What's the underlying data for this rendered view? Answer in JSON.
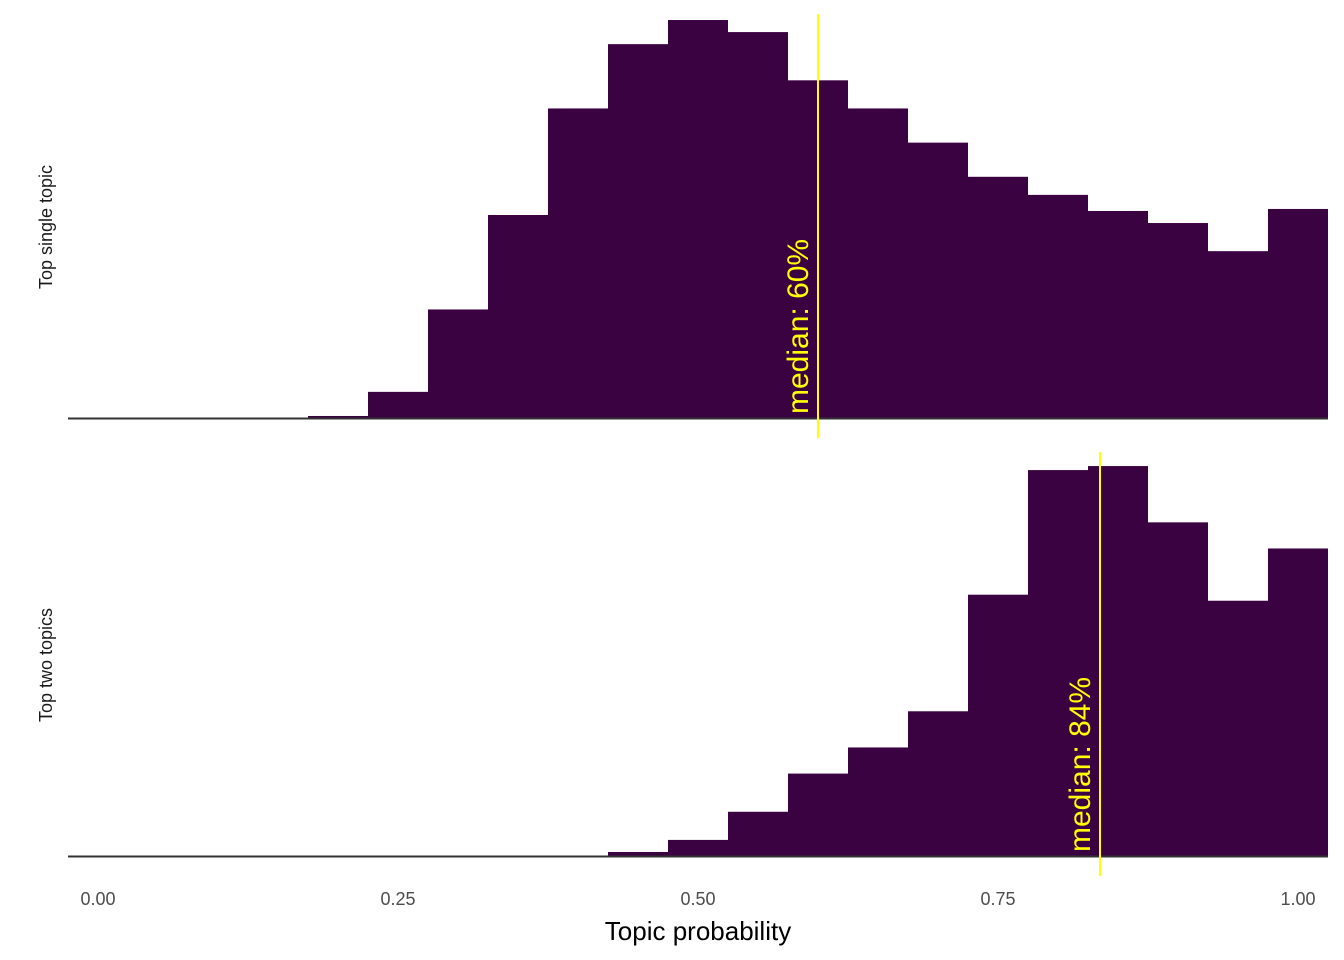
{
  "chart_data": {
    "type": "bar",
    "xlabel": "Topic probability",
    "x_ticks": [
      "0.00",
      "0.25",
      "0.50",
      "0.75",
      "1.00"
    ],
    "x_tick_values": [
      0,
      0.25,
      0.5,
      0.75,
      1.0
    ],
    "xlim": [
      -0.025,
      1.025
    ],
    "bin_width": 0.05,
    "bar_color": "#3b0242",
    "median_color": "#ffff00",
    "baseline_color": "#333333",
    "grid": false,
    "facets": [
      {
        "label": "Top single topic",
        "bin_centers": [
          0.2,
          0.25,
          0.3,
          0.35,
          0.4,
          0.45,
          0.5,
          0.55,
          0.6,
          0.65,
          0.7,
          0.75,
          0.8,
          0.85,
          0.9,
          0.95,
          1.0
        ],
        "values": [
          0.5,
          6.5,
          27,
          50.5,
          77,
          93,
          99,
          96,
          84,
          77,
          68.5,
          60,
          55.5,
          51.5,
          48.5,
          41.5,
          52
        ],
        "ylim": [
          0,
          100
        ],
        "median": 0.6,
        "median_label": "median: 60%"
      },
      {
        "label": "Top two topics",
        "bin_centers": [
          0.45,
          0.5,
          0.55,
          0.6,
          0.65,
          0.7,
          0.75,
          0.8,
          0.85,
          0.9,
          0.95,
          1.0
        ],
        "values": [
          1,
          4,
          11,
          20.5,
          27,
          36,
          65,
          96,
          97,
          83,
          63.5,
          76.5
        ],
        "ylim": [
          0,
          100
        ],
        "median": 0.835,
        "median_label": "median: 84%"
      }
    ]
  }
}
